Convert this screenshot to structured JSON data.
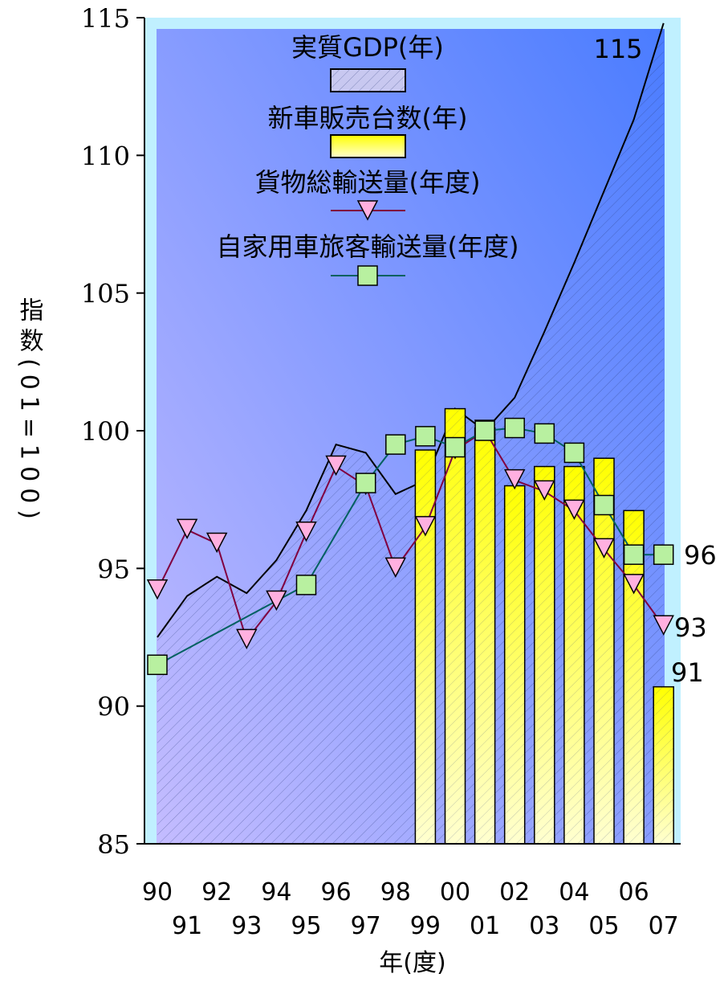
{
  "chart_data": {
    "type": "bar",
    "title": "",
    "xlabel": "年(度)",
    "ylabel": "指数(01=100)",
    "ylim": [
      85,
      115
    ],
    "y_ticks": [
      "85",
      "90",
      "95",
      "100",
      "105",
      "110",
      "115"
    ],
    "categories": [
      "90",
      "91",
      "92",
      "93",
      "94",
      "95",
      "96",
      "97",
      "98",
      "99",
      "00",
      "01",
      "02",
      "03",
      "04",
      "05",
      "06",
      "07"
    ],
    "series": [
      {
        "name": "実質GDP(年)",
        "kind": "area",
        "values": [
          92.5,
          94.0,
          94.7,
          94.1,
          95.3,
          97.1,
          99.5,
          99.2,
          97.7,
          98.2,
          100.8,
          100.0,
          101.2,
          103.6,
          106.1,
          108.7,
          111.3,
          114.8
        ]
      },
      {
        "name": "新車販売台数(年)",
        "kind": "bar",
        "values": [
          null,
          null,
          null,
          null,
          null,
          null,
          null,
          null,
          null,
          99.3,
          100.8,
          100.1,
          98.0,
          98.7,
          98.7,
          99.0,
          97.1,
          90.7
        ]
      },
      {
        "name": "貨物総輸送量(年度)",
        "kind": "line",
        "color": "#800040",
        "marker_color": "#ffb0e0",
        "values": [
          94.2,
          96.4,
          95.9,
          92.4,
          93.8,
          96.3,
          98.7,
          98.0,
          95.0,
          96.5,
          99.3,
          100.0,
          98.2,
          97.8,
          97.1,
          95.7,
          94.4,
          92.9
        ]
      },
      {
        "name": "自家用車旅客輸送量(年度)",
        "kind": "line",
        "color": "#006060",
        "marker_color": "#b8f0a0",
        "values": [
          91.5,
          null,
          null,
          null,
          null,
          94.4,
          null,
          98.1,
          99.5,
          99.8,
          99.4,
          100.0,
          100.1,
          99.9,
          99.2,
          97.3,
          95.5,
          95.5
        ]
      }
    ],
    "end_labels": [
      "115",
      "96",
      "93",
      "91"
    ],
    "legend_position": "top-center",
    "colors": {
      "plot_border": "#c0f0ff",
      "gradient_top": "#5080ff",
      "gradient_bottom": "#c0b8ff",
      "bar_top": "#ffff00",
      "bar_bottom": "#ffffcc"
    }
  }
}
